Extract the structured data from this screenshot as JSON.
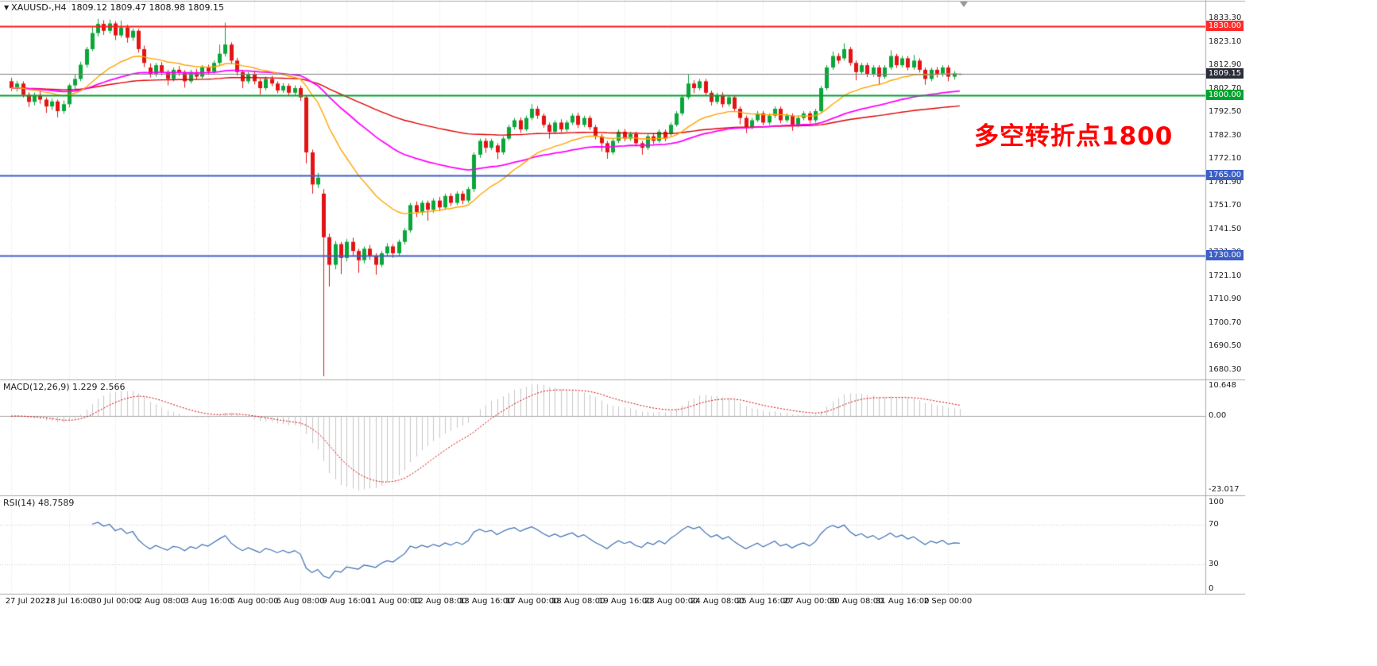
{
  "header": {
    "dropdown_icon": "▼",
    "symbol": "XAUUSD-,H4",
    "ohlc": "1809.12 1809.47 1808.98 1809.15"
  },
  "annotation": {
    "text": "多空转折点1800",
    "color": "#FF0000"
  },
  "chart_data": [
    {
      "type": "candlestick",
      "title": "XAUUSD- H4",
      "up_color": "#0AA639",
      "down_color": "#E21414",
      "last_values": {
        "open": 1809.12,
        "high": 1809.47,
        "low": 1808.98,
        "close": 1809.15
      },
      "price_ticks": [
        1833.3,
        1823.1,
        1812.9,
        1802.7,
        1792.5,
        1782.3,
        1772.1,
        1761.9,
        1751.7,
        1741.5,
        1731.3,
        1721.1,
        1710.9,
        1700.7,
        1690.5,
        1680.3
      ],
      "price_markers": [
        {
          "label": "1830.00",
          "price": 1830.0,
          "bg": "#FF2A2A",
          "fg": "#FFFFFF"
        },
        {
          "label": "1809.15",
          "price": 1809.15,
          "bg": "#2A2E39",
          "fg": "#FFFFFF"
        },
        {
          "label": "1800.00",
          "price": 1800.0,
          "bg": "#00A32E",
          "fg": "#FFFFFF"
        },
        {
          "label": "1765.00",
          "price": 1765.0,
          "bg": "#3D5FC4",
          "fg": "#FFFFFF"
        },
        {
          "label": "1730.00",
          "price": 1730.0,
          "bg": "#3D5FC4",
          "fg": "#FFFFFF"
        }
      ],
      "hlines": [
        {
          "price": 1830.0,
          "color": "#FF1A1A",
          "width": 2
        },
        {
          "price": 1800.0,
          "color": "#00A32E",
          "width": 2
        },
        {
          "price": 1765.0,
          "color": "#3D5FC4",
          "width": 2
        },
        {
          "price": 1730.0,
          "color": "#3D5FC4",
          "width": 2
        },
        {
          "price": 1809.15,
          "color": "#808080",
          "width": 1
        }
      ],
      "moving_averages": [
        {
          "period": 120,
          "color": "#E00000",
          "width": 1.4
        },
        {
          "period": 55,
          "color": "#FF00FF",
          "width": 1.8
        },
        {
          "period": 21,
          "color": "#FFA500",
          "width": 1.4
        }
      ],
      "time_labels": [
        {
          "i": 0,
          "t": "27 Jul 2021"
        },
        {
          "i": 10,
          "t": "28 Jul 16:00"
        },
        {
          "i": 18,
          "t": "30 Jul 00:00"
        },
        {
          "i": 26,
          "t": "2 Aug 08:00"
        },
        {
          "i": 34,
          "t": "3 Aug 16:00"
        },
        {
          "i": 42,
          "t": "5 Aug 00:00"
        },
        {
          "i": 50,
          "t": "6 Aug 08:00"
        },
        {
          "i": 58,
          "t": "9 Aug 16:00"
        },
        {
          "i": 66,
          "t": "11 Aug 00:00"
        },
        {
          "i": 74,
          "t": "12 Aug 08:00"
        },
        {
          "i": 82,
          "t": "13 Aug 16:00"
        },
        {
          "i": 90,
          "t": "17 Aug 00:00"
        },
        {
          "i": 98,
          "t": "18 Aug 08:00"
        },
        {
          "i": 106,
          "t": "19 Aug 16:00"
        },
        {
          "i": 114,
          "t": "23 Aug 00:00"
        },
        {
          "i": 122,
          "t": "24 Aug 08:00"
        },
        {
          "i": 130,
          "t": "25 Aug 16:00"
        },
        {
          "i": 138,
          "t": "27 Aug 00:00"
        },
        {
          "i": 146,
          "t": "30 Aug 08:00"
        },
        {
          "i": 154,
          "t": "31 Aug 16:00"
        },
        {
          "i": 162,
          "t": "2 Sep 00:00"
        }
      ],
      "candles": [
        [
          1806,
          1807.5,
          1801.8,
          1803
        ],
        [
          1803,
          1806.2,
          1801.5,
          1805
        ],
        [
          1805,
          1806,
          1798.9,
          1800.1
        ],
        [
          1800.1,
          1801.2,
          1794.8,
          1797
        ],
        [
          1797,
          1801,
          1795.5,
          1800
        ],
        [
          1800,
          1801.6,
          1796.2,
          1798
        ],
        [
          1798,
          1799,
          1792.2,
          1795
        ],
        [
          1795,
          1798.4,
          1793.5,
          1797.2
        ],
        [
          1797.2,
          1798,
          1790.3,
          1793
        ],
        [
          1793,
          1797.6,
          1791.8,
          1796
        ],
        [
          1796,
          1805,
          1794.6,
          1804.2
        ],
        [
          1804.2,
          1808.8,
          1802.5,
          1807
        ],
        [
          1807,
          1814.5,
          1806,
          1813.2
        ],
        [
          1813.2,
          1821,
          1812,
          1820
        ],
        [
          1820,
          1829.8,
          1819.2,
          1827
        ],
        [
          1827,
          1833.2,
          1825.5,
          1831
        ],
        [
          1831,
          1832.6,
          1826.2,
          1828
        ],
        [
          1828,
          1832.9,
          1826.8,
          1831.2
        ],
        [
          1831.2,
          1832.2,
          1824,
          1826
        ],
        [
          1826,
          1832.4,
          1825,
          1829.4
        ],
        [
          1829.4,
          1830.6,
          1822.8,
          1825
        ],
        [
          1825,
          1829,
          1823.6,
          1828
        ],
        [
          1828,
          1828.8,
          1818.5,
          1820
        ],
        [
          1820,
          1821.5,
          1812.2,
          1814
        ],
        [
          1812,
          1813.8,
          1807.6,
          1809
        ],
        [
          1809,
          1814,
          1808,
          1813
        ],
        [
          1813,
          1814.4,
          1808.6,
          1810
        ],
        [
          1810,
          1811,
          1804.2,
          1807
        ],
        [
          1807,
          1812,
          1806,
          1811
        ],
        [
          1811,
          1812.6,
          1808.4,
          1810
        ],
        [
          1810,
          1810.8,
          1803.2,
          1806
        ],
        [
          1806,
          1811,
          1805,
          1810
        ],
        [
          1810,
          1811.4,
          1806.6,
          1808
        ],
        [
          1808,
          1813,
          1807.2,
          1812
        ],
        [
          1812,
          1813.2,
          1808.8,
          1810.2
        ],
        [
          1810.2,
          1815,
          1809,
          1814
        ],
        [
          1814,
          1822,
          1813,
          1818
        ],
        [
          1818,
          1831.5,
          1816.8,
          1822
        ],
        [
          1822,
          1823,
          1813.4,
          1815
        ],
        [
          1815,
          1816.2,
          1808.5,
          1810
        ],
        [
          1810,
          1811,
          1803,
          1806
        ],
        [
          1806,
          1810,
          1805,
          1809
        ],
        [
          1809,
          1810.2,
          1804.6,
          1806
        ],
        [
          1806,
          1807,
          1800.2,
          1803
        ],
        [
          1803,
          1808,
          1802,
          1807
        ],
        [
          1807,
          1808.4,
          1803.8,
          1805
        ],
        [
          1805,
          1806,
          1800.8,
          1802
        ],
        [
          1802,
          1805.2,
          1801,
          1804
        ],
        [
          1804,
          1805,
          1799.6,
          1801
        ],
        [
          1801,
          1804.2,
          1800,
          1803
        ],
        [
          1803,
          1804,
          1797.4,
          1799
        ],
        [
          1799,
          1800,
          1770.2,
          1775
        ],
        [
          1775,
          1776.2,
          1757,
          1761
        ],
        [
          1761,
          1766,
          1759.5,
          1764
        ],
        [
          1757,
          1759,
          1677.4,
          1738
        ],
        [
          1738,
          1739.5,
          1716.5,
          1726
        ],
        [
          1726,
          1736.4,
          1724,
          1735
        ],
        [
          1735,
          1736,
          1722,
          1729
        ],
        [
          1729,
          1737.2,
          1727.5,
          1736
        ],
        [
          1736,
          1737.8,
          1729.8,
          1732
        ],
        [
          1732,
          1733,
          1722.5,
          1728
        ],
        [
          1728,
          1734,
          1726.6,
          1733
        ],
        [
          1733,
          1734.6,
          1728.2,
          1730
        ],
        [
          1730,
          1731,
          1721.7,
          1726
        ],
        [
          1726,
          1732,
          1725,
          1731
        ],
        [
          1731,
          1735.4,
          1729.6,
          1734
        ],
        [
          1734,
          1735,
          1729,
          1731
        ],
        [
          1731,
          1737,
          1730,
          1736
        ],
        [
          1736,
          1742,
          1734.8,
          1741
        ],
        [
          1741,
          1753,
          1740,
          1752
        ],
        [
          1752,
          1753.6,
          1746.8,
          1749
        ],
        [
          1749,
          1754,
          1747.6,
          1753
        ],
        [
          1753,
          1754,
          1745.2,
          1750
        ],
        [
          1750,
          1755,
          1748.6,
          1754
        ],
        [
          1754,
          1755.6,
          1749.4,
          1751
        ],
        [
          1751,
          1757,
          1750,
          1756
        ],
        [
          1756,
          1757.2,
          1751.6,
          1753
        ],
        [
          1753,
          1758,
          1752,
          1757
        ],
        [
          1757,
          1758.2,
          1752.4,
          1754
        ],
        [
          1754,
          1760,
          1753,
          1759
        ],
        [
          1759,
          1775,
          1757.8,
          1774
        ],
        [
          1774,
          1781,
          1772.6,
          1780
        ],
        [
          1780,
          1781.2,
          1774.8,
          1777
        ],
        [
          1777,
          1781,
          1776,
          1780
        ],
        [
          1778,
          1779,
          1772,
          1775
        ],
        [
          1775,
          1782,
          1774,
          1781
        ],
        [
          1781,
          1787,
          1780.2,
          1786
        ],
        [
          1786,
          1790,
          1785,
          1789
        ],
        [
          1789,
          1790.2,
          1783.6,
          1785
        ],
        [
          1785,
          1791,
          1784.2,
          1790
        ],
        [
          1790,
          1796,
          1789,
          1794
        ],
        [
          1794,
          1795.2,
          1789.6,
          1791
        ],
        [
          1791,
          1792,
          1785.8,
          1787
        ],
        [
          1787,
          1788,
          1781,
          1784
        ],
        [
          1784,
          1789,
          1783,
          1788
        ],
        [
          1788,
          1789.4,
          1783.8,
          1785
        ],
        [
          1785,
          1789,
          1784,
          1788
        ],
        [
          1788,
          1792,
          1787,
          1791
        ],
        [
          1791,
          1792.2,
          1785.6,
          1787
        ],
        [
          1787,
          1791,
          1786,
          1790
        ],
        [
          1790,
          1791,
          1784.8,
          1786
        ],
        [
          1786,
          1787,
          1780.6,
          1782
        ],
        [
          1782,
          1783,
          1775.4,
          1779
        ],
        [
          1779,
          1780,
          1772.2,
          1775
        ],
        [
          1775,
          1781,
          1774,
          1780
        ],
        [
          1780,
          1785,
          1779,
          1784
        ],
        [
          1784,
          1785.2,
          1779.8,
          1781
        ],
        [
          1781,
          1784,
          1780,
          1783
        ],
        [
          1783,
          1784,
          1777.6,
          1779
        ],
        [
          1779,
          1780,
          1774,
          1777
        ],
        [
          1777,
          1783,
          1776,
          1782
        ],
        [
          1782,
          1783.2,
          1778.6,
          1780
        ],
        [
          1780,
          1785,
          1779.2,
          1784
        ],
        [
          1784,
          1785,
          1779.8,
          1781
        ],
        [
          1783,
          1788,
          1782,
          1787
        ],
        [
          1787,
          1793,
          1786.2,
          1792
        ],
        [
          1792,
          1800,
          1791,
          1799
        ],
        [
          1799,
          1809,
          1798,
          1805
        ],
        [
          1805,
          1806.4,
          1800.8,
          1803
        ],
        [
          1803,
          1807,
          1802,
          1806
        ],
        [
          1806,
          1807,
          1799.8,
          1801
        ],
        [
          1801,
          1802,
          1795.4,
          1797
        ],
        [
          1797,
          1801,
          1796,
          1800
        ],
        [
          1800,
          1801.2,
          1794.6,
          1796
        ],
        [
          1796,
          1800,
          1795,
          1799
        ],
        [
          1799,
          1800,
          1792.8,
          1794
        ],
        [
          1794,
          1795,
          1787.2,
          1790
        ],
        [
          1790,
          1791,
          1783.4,
          1786
        ],
        [
          1786,
          1790,
          1785,
          1789
        ],
        [
          1789,
          1793,
          1788.2,
          1792
        ],
        [
          1792,
          1793,
          1786.8,
          1788
        ],
        [
          1788,
          1792,
          1787,
          1791
        ],
        [
          1791,
          1795,
          1790,
          1794
        ],
        [
          1794,
          1795,
          1787.8,
          1789
        ],
        [
          1789,
          1792,
          1788,
          1791
        ],
        [
          1791,
          1792,
          1784.4,
          1787
        ],
        [
          1787,
          1791,
          1786,
          1790
        ],
        [
          1790,
          1793,
          1789,
          1792
        ],
        [
          1792,
          1793,
          1787.6,
          1789
        ],
        [
          1789,
          1794,
          1788,
          1793
        ],
        [
          1793,
          1804,
          1792,
          1803
        ],
        [
          1803,
          1813,
          1802,
          1812
        ],
        [
          1812,
          1819,
          1811,
          1817
        ],
        [
          1817,
          1818.2,
          1813.6,
          1815
        ],
        [
          1816,
          1822.5,
          1815,
          1820
        ],
        [
          1820,
          1821,
          1812.8,
          1814
        ],
        [
          1814,
          1815,
          1806.4,
          1810
        ],
        [
          1810,
          1814,
          1809,
          1813
        ],
        [
          1813,
          1814,
          1807.8,
          1809
        ],
        [
          1809,
          1813,
          1808,
          1812
        ],
        [
          1812,
          1813,
          1804.4,
          1808
        ],
        [
          1808,
          1813,
          1807,
          1812
        ],
        [
          1812,
          1819.5,
          1811,
          1817
        ],
        [
          1817,
          1818,
          1811.8,
          1813
        ],
        [
          1813,
          1817,
          1812,
          1816
        ],
        [
          1816,
          1817,
          1810.8,
          1812
        ],
        [
          1812,
          1817.5,
          1811,
          1815
        ],
        [
          1815,
          1816,
          1809.8,
          1811
        ],
        [
          1811,
          1812,
          1804.5,
          1807
        ],
        [
          1807,
          1812,
          1806,
          1811
        ],
        [
          1811,
          1812.2,
          1807.6,
          1809
        ],
        [
          1809,
          1813,
          1808,
          1812
        ],
        [
          1812,
          1813,
          1806,
          1808
        ],
        [
          1808,
          1810.4,
          1806.8,
          1809.5
        ],
        [
          1809.12,
          1809.47,
          1808.98,
          1809.15
        ]
      ]
    },
    {
      "type": "macd",
      "label": "MACD(12,26,9) 1.229 2.566",
      "fast": 12,
      "slow": 26,
      "signal": 9,
      "value": 1.229,
      "signal_value": 2.566,
      "axis_labels": [
        "10.648",
        "0.00",
        "-23.017"
      ],
      "histogram_color": "#C6C6C6",
      "signal_color": "#D40000"
    },
    {
      "type": "rsi",
      "label": "RSI(14) 48.7589",
      "period": 14,
      "value": 48.7589,
      "axis_labels": [
        "100",
        "70",
        "30",
        "0"
      ],
      "levels": [
        70,
        30
      ],
      "line_color": "#3C6EB4"
    }
  ]
}
